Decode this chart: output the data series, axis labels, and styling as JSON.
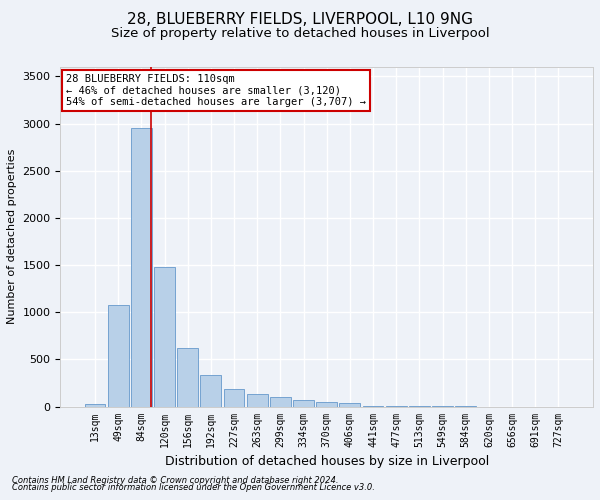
{
  "title1": "28, BLUEBERRY FIELDS, LIVERPOOL, L10 9NG",
  "title2": "Size of property relative to detached houses in Liverpool",
  "xlabel": "Distribution of detached houses by size in Liverpool",
  "ylabel": "Number of detached properties",
  "bar_labels": [
    "13sqm",
    "49sqm",
    "84sqm",
    "120sqm",
    "156sqm",
    "192sqm",
    "227sqm",
    "263sqm",
    "299sqm",
    "334sqm",
    "370sqm",
    "406sqm",
    "441sqm",
    "477sqm",
    "513sqm",
    "549sqm",
    "584sqm",
    "620sqm",
    "656sqm",
    "691sqm",
    "727sqm"
  ],
  "bar_values": [
    30,
    1080,
    2950,
    1480,
    620,
    340,
    190,
    130,
    100,
    70,
    50,
    40,
    10,
    10,
    5,
    3,
    2,
    1,
    1,
    1,
    1
  ],
  "bar_color": "#b8d0e8",
  "bar_edge_color": "#6699cc",
  "vline_x": 2.42,
  "vline_color": "#cc0000",
  "annotation_text": "28 BLUEBERRY FIELDS: 110sqm\n← 46% of detached houses are smaller (3,120)\n54% of semi-detached houses are larger (3,707) →",
  "annotation_box_color": "#ffffff",
  "annotation_box_edge": "#cc0000",
  "footnote1": "Contains HM Land Registry data © Crown copyright and database right 2024.",
  "footnote2": "Contains public sector information licensed under the Open Government Licence v3.0.",
  "background_color": "#eef2f8",
  "ylim": [
    0,
    3600
  ],
  "yticks": [
    0,
    500,
    1000,
    1500,
    2000,
    2500,
    3000,
    3500
  ],
  "grid_color": "#ffffff",
  "title1_fontsize": 11,
  "title2_fontsize": 9.5,
  "annotation_fontsize": 7.5
}
